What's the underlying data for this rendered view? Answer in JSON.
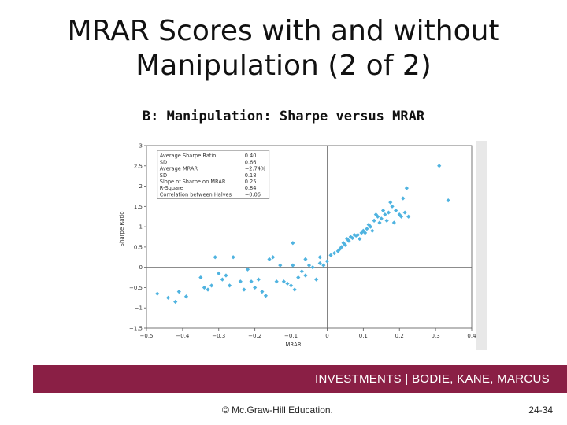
{
  "slide": {
    "title_line1": "MRAR Scores with and without",
    "title_line2": "Manipulation (2 of 2)",
    "panel_title": "B: Manipulation: Sharpe versus MRAR"
  },
  "footer": {
    "banner": "INVESTMENTS | BODIE, KANE, MARCUS",
    "copyright": "© Mc.Graw-Hill Education.",
    "page": "24-34",
    "banner_color": "#8a1f45"
  },
  "chart_data": {
    "type": "scatter",
    "xlabel": "MRAR",
    "ylabel": "Sharpe Ratio",
    "xlim": [
      -0.5,
      0.4
    ],
    "ylim": [
      -1.5,
      3
    ],
    "xticks": [
      "−0.5",
      "−0.4",
      "−0.3",
      "−0.2",
      "−0.1",
      "0",
      "0.1",
      "0.2",
      "0.3",
      "0.4"
    ],
    "yticks": [
      "−1.5",
      "−1",
      "−0.5",
      "0",
      "0.5",
      "1",
      "1.5",
      "2",
      "2.5",
      "3"
    ],
    "point_color": "#4fb3e0",
    "legend_box": [
      {
        "label": "Average Sharpe Ratio",
        "value": "0.40"
      },
      {
        "label": "SD",
        "value": "0.66"
      },
      {
        "label": "Average MRAR",
        "value": "−2.74%"
      },
      {
        "label": "SD",
        "value": "0.18"
      },
      {
        "label": "Slope of Sharpe on MRAR",
        "value": "0.25"
      },
      {
        "label": "R-Square",
        "value": "0.84"
      },
      {
        "label": "Correlation between Halves",
        "value": "−0.06"
      }
    ],
    "points": [
      [
        -0.47,
        -0.65
      ],
      [
        -0.44,
        -0.75
      ],
      [
        -0.42,
        -0.85
      ],
      [
        -0.41,
        -0.6
      ],
      [
        -0.39,
        -0.72
      ],
      [
        -0.35,
        -0.25
      ],
      [
        -0.34,
        -0.5
      ],
      [
        -0.33,
        -0.55
      ],
      [
        -0.32,
        -0.45
      ],
      [
        -0.31,
        0.25
      ],
      [
        -0.3,
        -0.15
      ],
      [
        -0.29,
        -0.3
      ],
      [
        -0.28,
        -0.2
      ],
      [
        -0.27,
        -0.45
      ],
      [
        -0.26,
        0.25
      ],
      [
        -0.24,
        -0.35
      ],
      [
        -0.23,
        -0.55
      ],
      [
        -0.22,
        -0.05
      ],
      [
        -0.21,
        -0.35
      ],
      [
        -0.2,
        -0.5
      ],
      [
        -0.19,
        -0.3
      ],
      [
        -0.18,
        -0.6
      ],
      [
        -0.17,
        -0.7
      ],
      [
        -0.16,
        0.2
      ],
      [
        -0.15,
        0.25
      ],
      [
        -0.14,
        -0.35
      ],
      [
        -0.13,
        0.05
      ],
      [
        -0.12,
        -0.35
      ],
      [
        -0.11,
        -0.4
      ],
      [
        -0.1,
        -0.45
      ],
      [
        -0.09,
        -0.55
      ],
      [
        -0.08,
        -0.25
      ],
      [
        -0.07,
        -0.1
      ],
      [
        -0.06,
        -0.2
      ],
      [
        -0.05,
        0.05
      ],
      [
        -0.04,
        0.0
      ],
      [
        -0.03,
        -0.3
      ],
      [
        -0.02,
        0.1
      ],
      [
        -0.01,
        0.05
      ],
      [
        0.0,
        0.15
      ],
      [
        0.01,
        0.3
      ],
      [
        0.02,
        0.35
      ],
      [
        0.03,
        0.4
      ],
      [
        0.035,
        0.45
      ],
      [
        0.04,
        0.5
      ],
      [
        0.045,
        0.6
      ],
      [
        0.05,
        0.55
      ],
      [
        0.055,
        0.7
      ],
      [
        0.06,
        0.65
      ],
      [
        0.065,
        0.75
      ],
      [
        0.07,
        0.72
      ],
      [
        0.075,
        0.8
      ],
      [
        0.08,
        0.78
      ],
      [
        0.085,
        0.8
      ],
      [
        0.09,
        0.7
      ],
      [
        0.095,
        0.85
      ],
      [
        0.1,
        0.9
      ],
      [
        0.105,
        0.85
      ],
      [
        0.11,
        0.95
      ],
      [
        0.115,
        1.05
      ],
      [
        0.12,
        1.0
      ],
      [
        0.125,
        0.9
      ],
      [
        0.13,
        1.15
      ],
      [
        0.135,
        1.3
      ],
      [
        0.14,
        1.25
      ],
      [
        0.145,
        1.1
      ],
      [
        0.15,
        1.2
      ],
      [
        0.155,
        1.4
      ],
      [
        0.16,
        1.3
      ],
      [
        0.165,
        1.15
      ],
      [
        0.17,
        1.35
      ],
      [
        0.175,
        1.6
      ],
      [
        0.18,
        1.5
      ],
      [
        0.185,
        1.1
      ],
      [
        0.19,
        1.4
      ],
      [
        0.2,
        1.3
      ],
      [
        0.205,
        1.25
      ],
      [
        0.21,
        1.7
      ],
      [
        0.215,
        1.35
      ],
      [
        0.22,
        1.95
      ],
      [
        0.225,
        1.25
      ],
      [
        0.31,
        2.5
      ],
      [
        0.335,
        1.65
      ],
      [
        -0.095,
        0.6
      ],
      [
        -0.06,
        0.2
      ],
      [
        -0.095,
        0.05
      ],
      [
        -0.02,
        0.25
      ]
    ]
  }
}
